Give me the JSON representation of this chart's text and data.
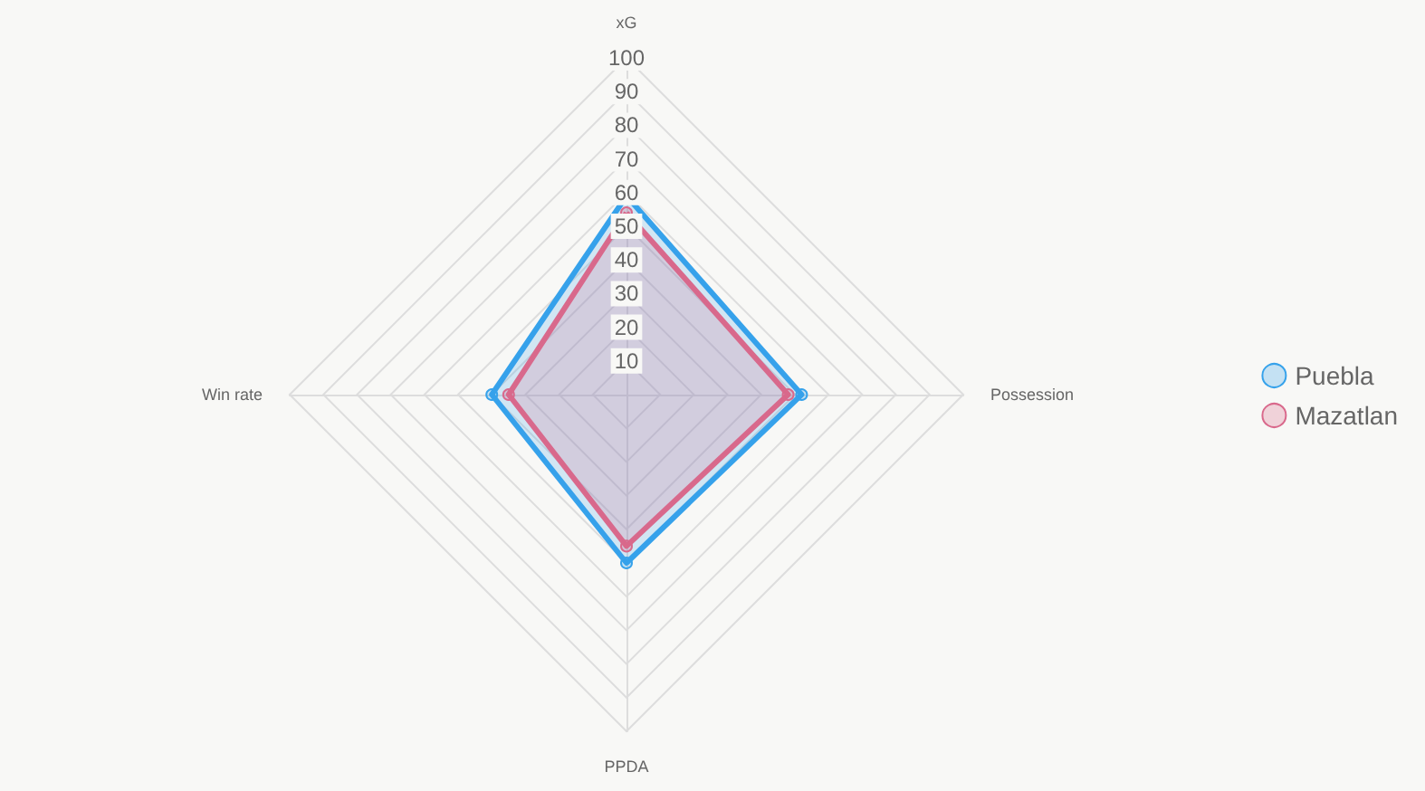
{
  "chart_data": {
    "type": "radar",
    "categories": [
      "xG",
      "Possession",
      "PPDA",
      "Win rate"
    ],
    "ylim": [
      0,
      100
    ],
    "yticks": [
      10,
      20,
      30,
      40,
      50,
      60,
      70,
      80,
      90,
      100
    ],
    "legend": "right",
    "marker": "circle",
    "grid": true,
    "series": [
      {
        "name": "Puebla",
        "color": "#36a2eb",
        "values": [
          59,
          52,
          50,
          40
        ]
      },
      {
        "name": "Mazatlan",
        "color": "#d9698c",
        "values": [
          54,
          48,
          45,
          35
        ]
      }
    ]
  }
}
